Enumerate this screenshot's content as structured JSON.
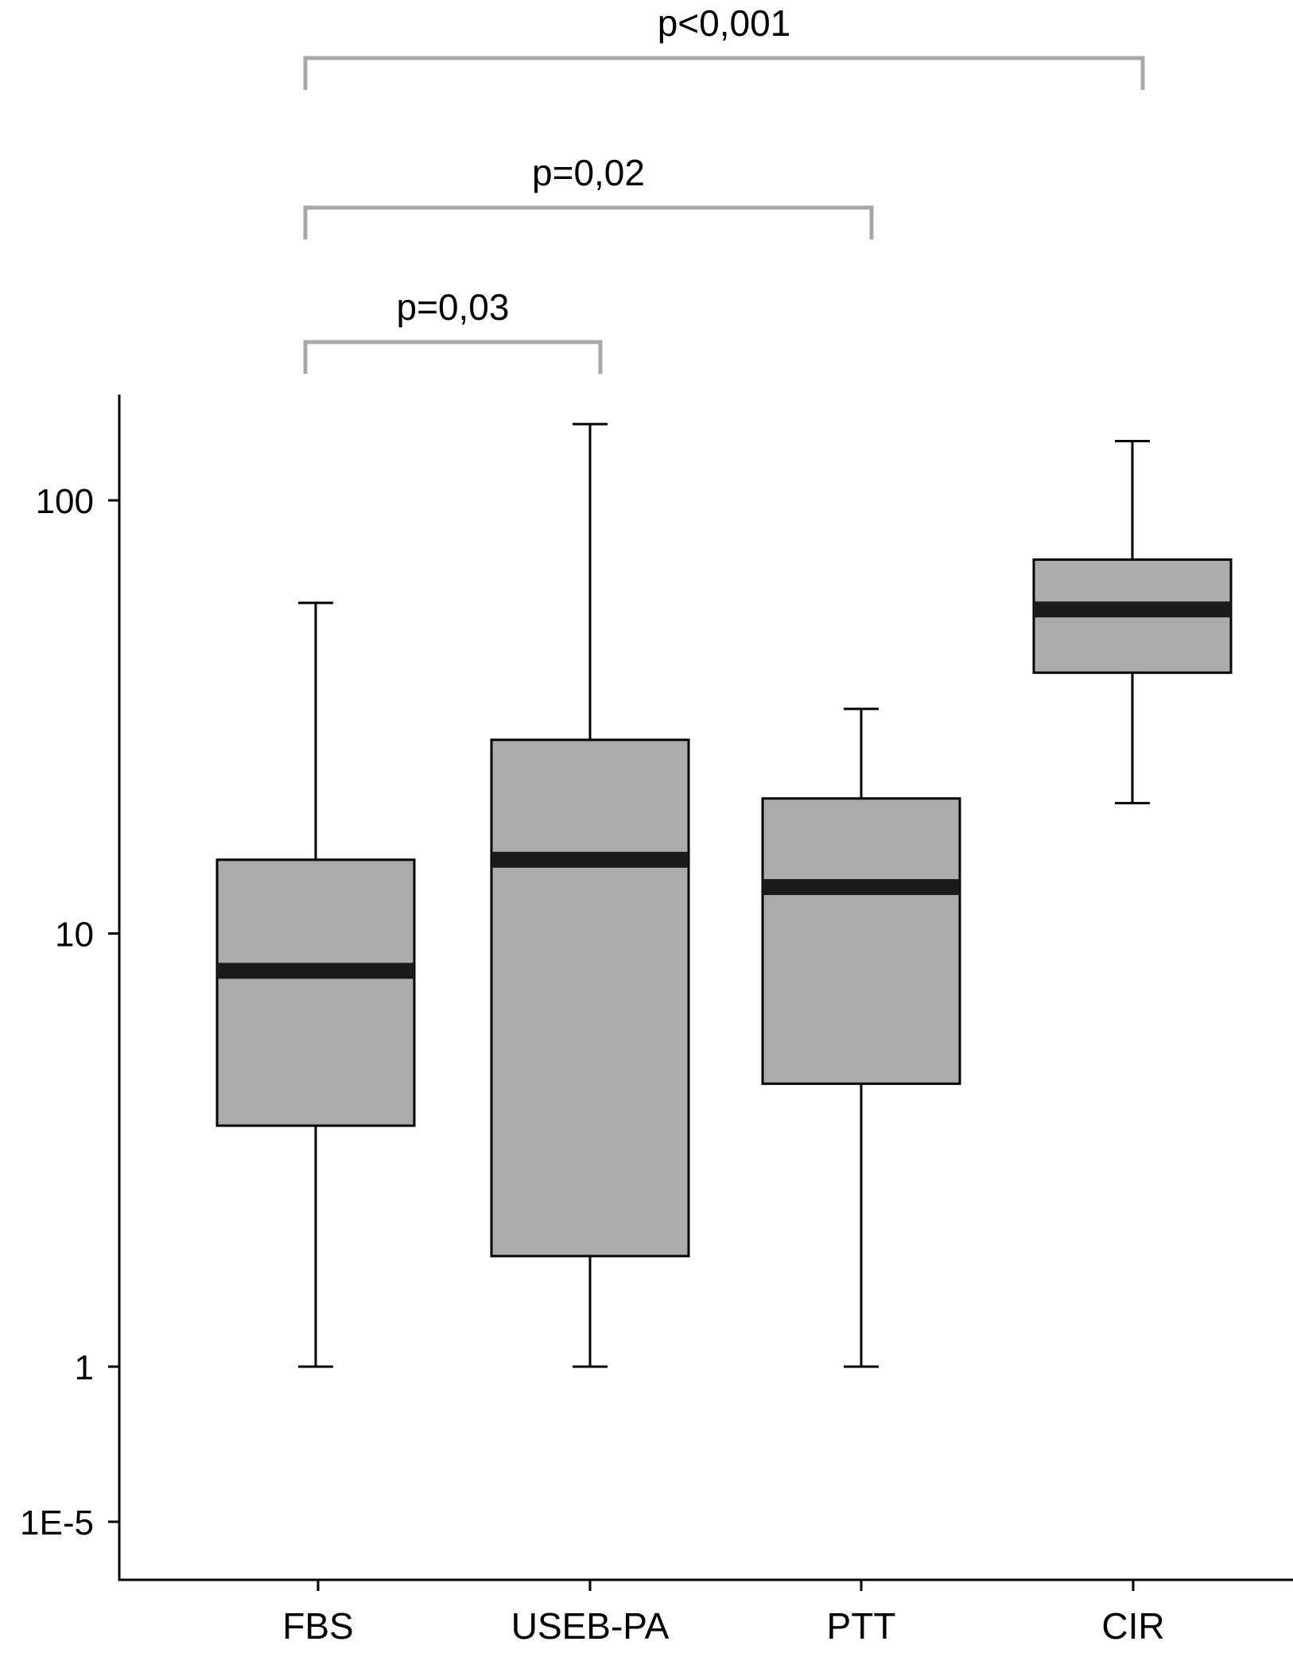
{
  "chart_data": {
    "type": "box",
    "title": "",
    "xlabel": "",
    "ylabel": "",
    "y_scale": "log (broken axis below 1)",
    "y_ticks": [
      {
        "label": "100",
        "value": 100
      },
      {
        "label": "10",
        "value": 10
      },
      {
        "label": "1",
        "value": 1
      },
      {
        "label": "1E-5",
        "value": 1e-05
      }
    ],
    "categories": [
      "FBS",
      "USEB-PA",
      "PTT",
      "CIR"
    ],
    "boxes": [
      {
        "category": "FBS",
        "whisker_low": 1,
        "q1": 3.6,
        "median": 8.2,
        "q3": 14.8,
        "whisker_high": 58
      },
      {
        "category": "USEB-PA",
        "whisker_low": 1,
        "q1": 1.8,
        "median": 14.8,
        "q3": 28,
        "whisker_high": 150
      },
      {
        "category": "PTT",
        "whisker_low": 1,
        "q1": 4.5,
        "median": 12.8,
        "q3": 20.5,
        "whisker_high": 33
      },
      {
        "category": "CIR",
        "whisker_low": 20,
        "q1": 40,
        "median": 56,
        "q3": 73,
        "whisker_high": 137
      }
    ],
    "comparisons": [
      {
        "from": "FBS",
        "to": "USEB-PA",
        "label": "p=0,03"
      },
      {
        "from": "FBS",
        "to": "PTT",
        "label": "p=0,02"
      },
      {
        "from": "FBS",
        "to": "CIR",
        "label": "p<0,001"
      }
    ],
    "colors": {
      "box_fill": "#ababab",
      "median": "#1a1a1a",
      "bracket": "#a8a8a8",
      "axis": "#000000"
    },
    "grid": false
  }
}
